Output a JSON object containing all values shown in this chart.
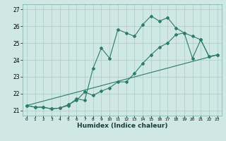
{
  "title": "",
  "xlabel": "Humidex (Indice chaleur)",
  "ylabel": "",
  "background_color": "#cfe8e4",
  "grid_color": "#a8ccc8",
  "line_color": "#2d7a6e",
  "xlim": [
    -0.5,
    23.5
  ],
  "ylim": [
    20.7,
    27.3
  ],
  "xticks": [
    0,
    1,
    2,
    3,
    4,
    5,
    6,
    7,
    8,
    9,
    10,
    11,
    12,
    13,
    14,
    15,
    16,
    17,
    18,
    19,
    20,
    21,
    22,
    23
  ],
  "yticks": [
    21,
    22,
    23,
    24,
    25,
    26,
    27
  ],
  "line1_x": [
    0,
    1,
    2,
    3,
    4,
    5,
    6,
    7,
    8,
    9,
    10,
    11,
    12,
    13,
    14,
    15,
    16,
    17,
    18,
    19,
    20,
    21,
    22,
    23
  ],
  "line1_y": [
    21.3,
    21.2,
    21.2,
    21.1,
    21.15,
    21.3,
    21.7,
    21.6,
    23.5,
    24.7,
    24.1,
    25.8,
    25.6,
    25.4,
    26.1,
    26.6,
    26.3,
    26.5,
    25.9,
    25.6,
    25.4,
    25.2,
    24.2,
    24.3
  ],
  "line2_x": [
    0,
    1,
    2,
    3,
    4,
    5,
    6,
    7,
    8,
    9,
    10,
    11,
    12,
    13,
    14,
    15,
    16,
    17,
    18,
    19,
    20,
    21,
    22,
    23
  ],
  "line2_y": [
    21.3,
    21.2,
    21.2,
    21.1,
    21.15,
    21.35,
    21.6,
    22.1,
    21.9,
    22.15,
    22.35,
    22.7,
    22.7,
    23.2,
    23.8,
    24.3,
    24.75,
    25.0,
    25.5,
    25.6,
    24.1,
    25.2,
    24.2,
    24.3
  ],
  "line3_x": [
    0,
    23
  ],
  "line3_y": [
    21.3,
    24.3
  ]
}
